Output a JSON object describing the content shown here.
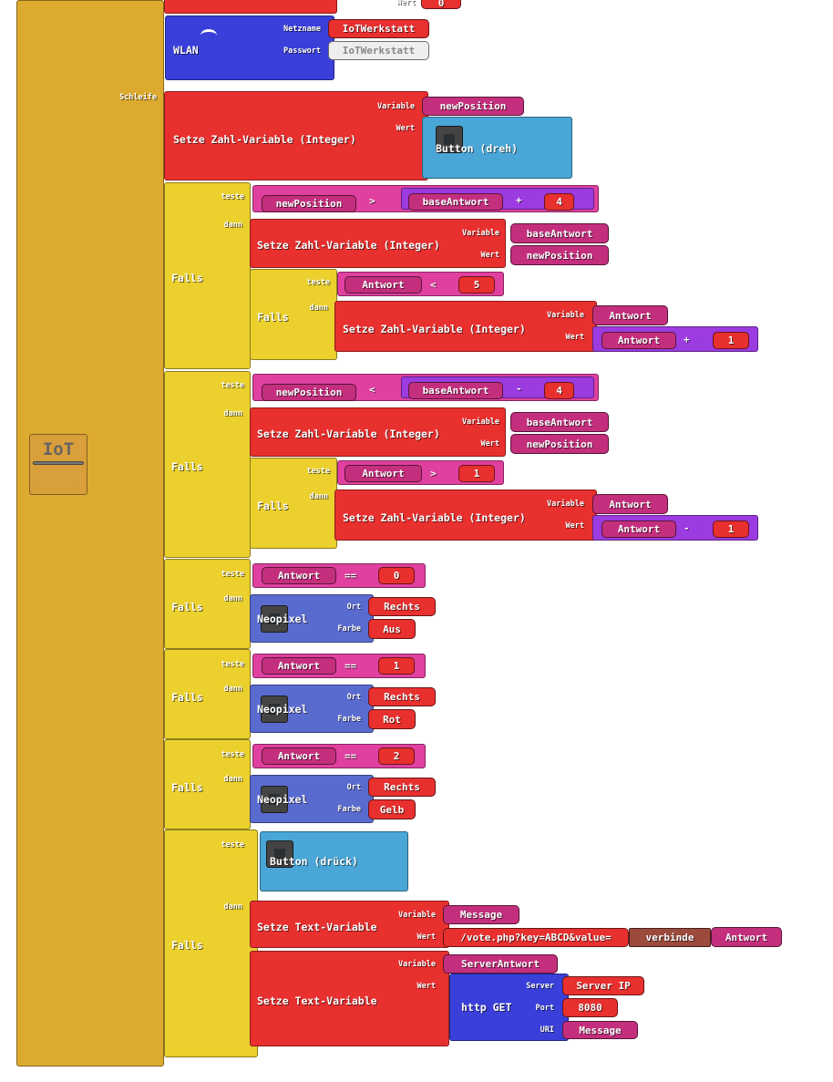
{
  "top": {
    "value_label": "Wert",
    "value": "0"
  },
  "wlan": {
    "title": "WLAN",
    "name_label": "Netzname",
    "name": "IoTWerkstatt",
    "password_label": "Passwort",
    "password": "IoTWerkstatt"
  },
  "loop_label": "Schleife",
  "logo": "IoT",
  "set_new_position": {
    "title": "Setze Zahl-Variable (Integer)",
    "variable_label": "Variable",
    "variable": "newPosition",
    "value_label": "Wert",
    "value": "Button (dreh)"
  },
  "if_blocks": [
    {
      "label": "Falls",
      "test_label": "teste",
      "then_label": "dann",
      "test": [
        "newPosition",
        ">",
        "baseAntwort",
        "+",
        "4"
      ],
      "then": {
        "title": "Setze Zahl-Variable (Integer)",
        "variable_label": "Variable",
        "variable": "baseAntwort",
        "value_label": "Wert",
        "value": "newPosition"
      },
      "nested": {
        "label": "Falls",
        "test_label": "teste",
        "then_label": "dann",
        "test": [
          "Antwort",
          "<",
          "5"
        ],
        "then": {
          "title": "Setze Zahl-Variable (Integer)",
          "variable_label": "Variable",
          "variable": "Antwort",
          "value_label": "Wert",
          "value": [
            "Antwort",
            "+",
            "1"
          ]
        }
      }
    },
    {
      "label": "Falls",
      "test_label": "teste",
      "then_label": "dann",
      "test": [
        "newPosition",
        "<",
        "baseAntwort",
        "-",
        "4"
      ],
      "then": {
        "title": "Setze Zahl-Variable (Integer)",
        "variable_label": "Variable",
        "variable": "baseAntwort",
        "value_label": "Wert",
        "value": "newPosition"
      },
      "nested": {
        "label": "Falls",
        "test_label": "teste",
        "then_label": "dann",
        "test": [
          "Antwort",
          ">",
          "1"
        ],
        "then": {
          "title": "Setze Zahl-Variable (Integer)",
          "variable_label": "Variable",
          "variable": "Antwort",
          "value_label": "Wert",
          "value": [
            "Antwort",
            "-",
            "1"
          ]
        }
      }
    },
    {
      "label": "Falls",
      "test_label": "teste",
      "then_label": "dann",
      "test": [
        "Antwort",
        "==",
        "0"
      ],
      "then": {
        "title": "Neopixel",
        "place_label": "Ort",
        "place": "Rechts",
        "color_label": "Farbe",
        "color": "Aus"
      }
    },
    {
      "label": "Falls",
      "test_label": "teste",
      "then_label": "dann",
      "test": [
        "Antwort",
        "==",
        "1"
      ],
      "then": {
        "title": "Neopixel",
        "place_label": "Ort",
        "place": "Rechts",
        "color_label": "Farbe",
        "color": "Rot"
      }
    },
    {
      "label": "Falls",
      "test_label": "teste",
      "then_label": "dann",
      "test": [
        "Antwort",
        "==",
        "2"
      ],
      "then": {
        "title": "Neopixel",
        "place_label": "Ort",
        "place": "Rechts",
        "color_label": "Farbe",
        "color": "Gelb"
      }
    },
    {
      "label": "Falls",
      "test_label": "teste",
      "then_label": "dann",
      "test": "Button (drück)",
      "then": [
        {
          "title": "Setze Text-Variable",
          "variable_label": "Variable",
          "variable": "Message",
          "value_label": "Wert",
          "value": [
            "/vote.php?key=ABCD&value=",
            "verbinde",
            "Antwort"
          ]
        },
        {
          "title": "Setze Text-Variable",
          "variable_label": "Variable",
          "variable": "ServerAntwort",
          "value_label": "Wert",
          "value": {
            "title": "http GET",
            "server_label": "Server",
            "server": "Server IP",
            "port_label": "Port",
            "port": "8080",
            "uri_label": "URI",
            "uri": "Message"
          }
        }
      ]
    }
  ]
}
